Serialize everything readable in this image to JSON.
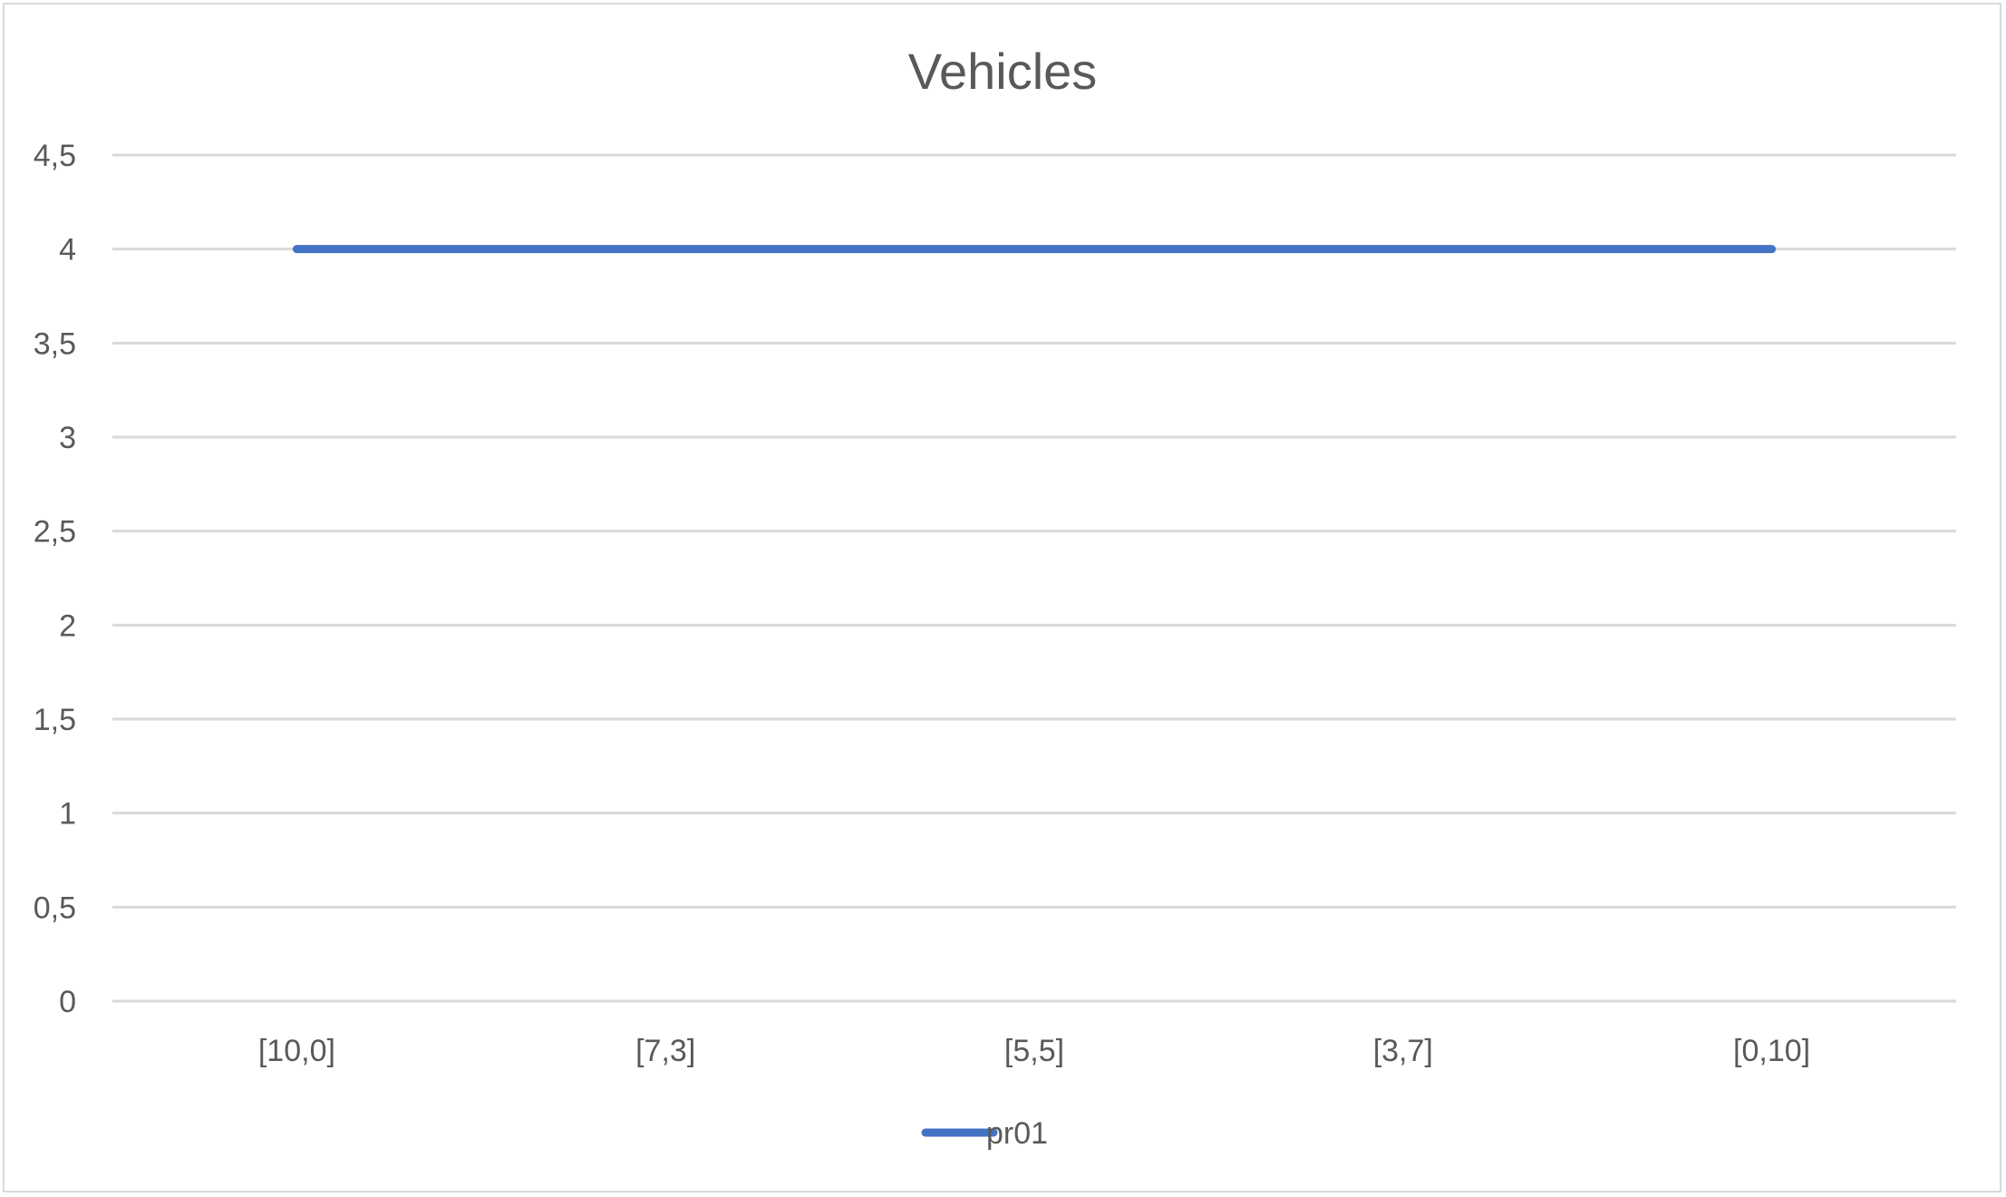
{
  "chart_data": {
    "type": "line",
    "title": "Vehicles",
    "xlabel": "",
    "ylabel": "",
    "categories": [
      "[10,0]",
      "[7,3]",
      "[5,5]",
      "[3,7]",
      "[0,10]"
    ],
    "ylim": [
      0,
      4.5
    ],
    "yticks": [
      "0",
      "0,5",
      "1",
      "1,5",
      "2",
      "2,5",
      "3",
      "3,5",
      "4",
      "4,5"
    ],
    "grid": true,
    "legend_position": "bottom",
    "series": [
      {
        "name": "pr01",
        "values": [
          4,
          4,
          4,
          4,
          4
        ],
        "color": "#4472c4"
      }
    ]
  }
}
